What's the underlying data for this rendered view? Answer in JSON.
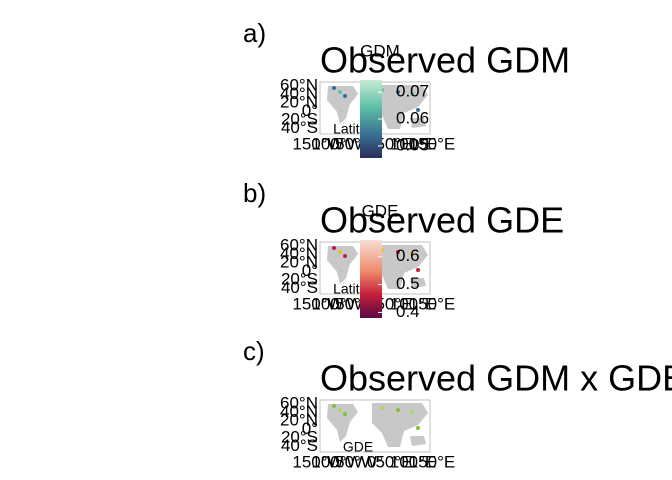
{
  "panels": [
    {
      "label": "a)",
      "title": "Observed GDM",
      "legend_title": "GDM",
      "legend_lim": [
        0.0455,
        0.0745
      ],
      "legend_ticks": [
        0.07,
        0.06,
        {
          "value": 0.05,
          "label": "0.05"
        }
      ],
      "axis_label": "Latitude"
    },
    {
      "label": "b)",
      "title": "Observed GDE",
      "legend_title": "GDE",
      "legend_lim": [
        0.38,
        0.66
      ],
      "legend_ticks": [
        0.6,
        0.5,
        0.4
      ],
      "axis_label": "Latitude"
    },
    {
      "label": "c)",
      "title": "Observed GDM x GDE",
      "axis_label": "GDE"
    }
  ],
  "lat_labels": [
    "60°N",
    "40°N",
    "20°N",
    "0°",
    "20°S",
    "40°S"
  ],
  "lon_labels": [
    "150°W",
    "100°W",
    "50°W",
    "0°",
    "50°E",
    "100°E",
    "150°E"
  ]
}
